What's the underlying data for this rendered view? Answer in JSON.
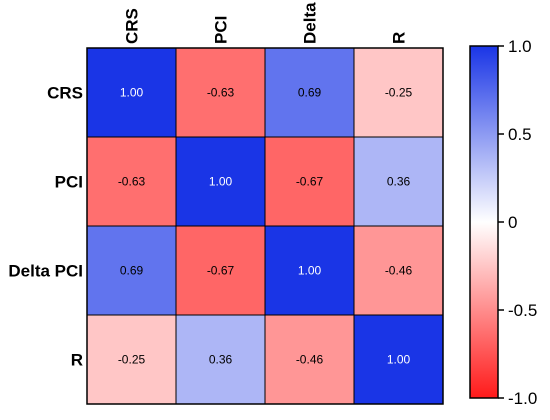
{
  "chart_data": {
    "type": "heatmap",
    "rows": [
      "CRS",
      "PCI",
      "Delta PCI",
      "R"
    ],
    "columns": [
      "CRS",
      "PCI",
      "Delta",
      "R"
    ],
    "values": [
      [
        1.0,
        -0.63,
        0.69,
        -0.25
      ],
      [
        -0.63,
        1.0,
        -0.67,
        0.36
      ],
      [
        0.69,
        -0.67,
        1.0,
        -0.46
      ],
      [
        -0.25,
        0.36,
        -0.46,
        1.0
      ]
    ],
    "value_labels": [
      [
        "1.00",
        "-0.63",
        "0.69",
        "-0.25"
      ],
      [
        "-0.63",
        "1.00",
        "-0.67",
        "0.36"
      ],
      [
        "0.69",
        "-0.67",
        "1.00",
        "-0.46"
      ],
      [
        "-0.25",
        "0.36",
        "-0.46",
        "1.00"
      ]
    ],
    "colorbar": {
      "range": [
        -1.0,
        1.0
      ],
      "ticks": [
        "1.0",
        "0.5",
        "0",
        "-0.5",
        "-1.0"
      ],
      "tick_values": [
        1.0,
        0.5,
        0,
        -0.5,
        -1.0
      ],
      "low_color": "#ff1a1a",
      "mid_color": "#ffffff",
      "high_color": "#1a35e6"
    }
  }
}
